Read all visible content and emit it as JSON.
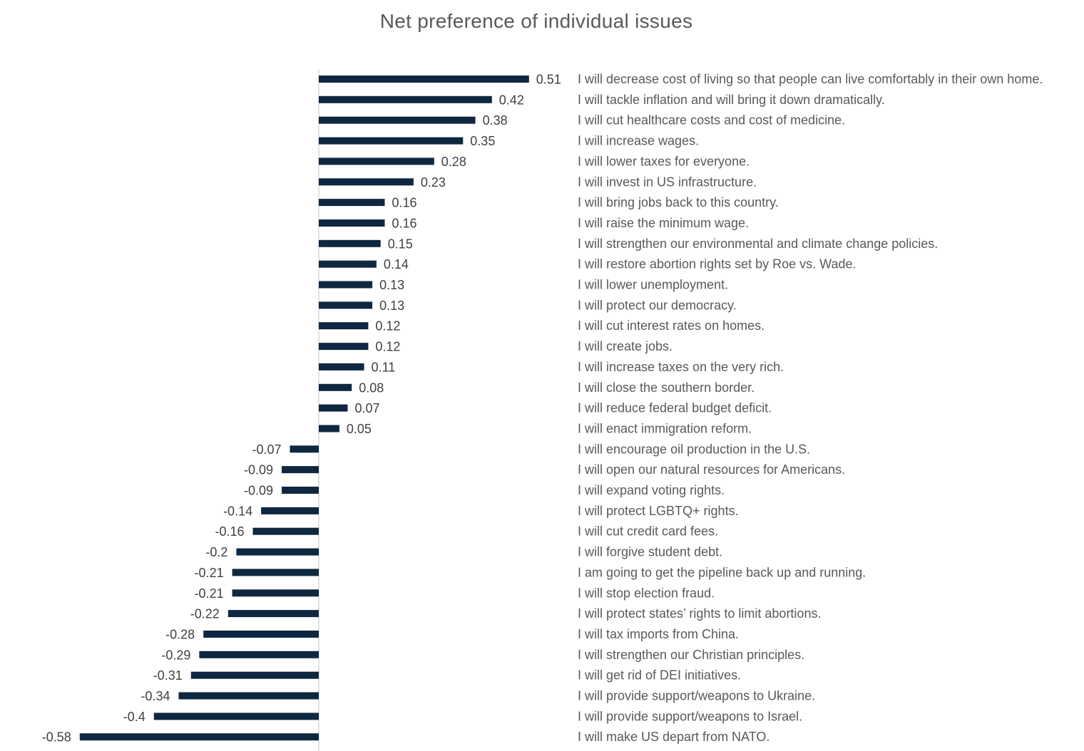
{
  "chart_data": {
    "type": "bar",
    "orientation": "horizontal",
    "title": "Net preference of individual issues",
    "xlabel": "",
    "ylabel": "",
    "xlim": [
      -0.58,
      0.51
    ],
    "grid": false,
    "legend": "none",
    "bar_color": "#0e2841",
    "categories": [
      "I will decrease cost of living so that people can live comfortably in their own home.",
      "I will tackle inflation and will bring it down dramatically.",
      "I will cut healthcare costs and cost of medicine.",
      "I will increase wages.",
      "I will lower taxes for everyone.",
      "I will invest in US infrastructure.",
      "I will bring jobs back to this country.",
      "I will raise the minimum wage.",
      "I will strengthen our environmental and climate change policies.",
      "I will restore abortion rights set by Roe vs. Wade.",
      "I will lower unemployment.",
      "I will protect our democracy.",
      "I will cut interest rates on homes.",
      "I will create jobs.",
      "I will increase taxes on the very rich.",
      "I will close the southern border.",
      "I will reduce federal budget deficit.",
      "I will enact immigration reform.",
      "I will encourage oil production in the U.S.",
      "I will open our natural resources for Americans.",
      "I will expand voting rights.",
      "I will protect LGBTQ+ rights.",
      "I will cut credit card fees.",
      "I will forgive student debt.",
      "I am going to get the pipeline back up and running.",
      "I will stop election fraud.",
      "I will protect states’ rights to limit abortions.",
      "I will tax imports from China.",
      "I will strengthen our Christian principles.",
      "I will get rid of DEI initiatives.",
      "I will provide support/weapons to Ukraine.",
      "I will provide support/weapons to Israel.",
      "I will make US depart from NATO."
    ],
    "values": [
      0.51,
      0.42,
      0.38,
      0.35,
      0.28,
      0.23,
      0.16,
      0.16,
      0.15,
      0.14,
      0.13,
      0.13,
      0.12,
      0.12,
      0.11,
      0.08,
      0.07,
      0.05,
      -0.07,
      -0.09,
      -0.09,
      -0.14,
      -0.16,
      -0.2,
      -0.21,
      -0.21,
      -0.22,
      -0.28,
      -0.29,
      -0.31,
      -0.34,
      -0.4,
      -0.58
    ]
  }
}
